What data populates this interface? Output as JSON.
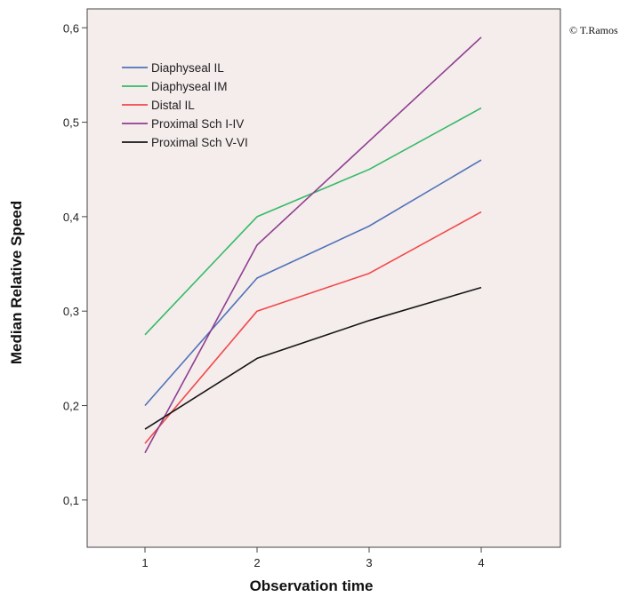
{
  "copyright": "© T.Ramos",
  "chart_data": {
    "type": "line",
    "title": "",
    "xlabel": "Observation time",
    "ylabel": "Median Relative Speed",
    "x": [
      "1",
      "2",
      "3",
      "4"
    ],
    "ylim": [
      0.05,
      0.62
    ],
    "yticks": [
      "0,1",
      "0,2",
      "0,3",
      "0,4",
      "0,5",
      "0,6"
    ],
    "legend_position": "top-left",
    "plot_background": "#f5ecec",
    "series": [
      {
        "name": "Diaphyseal IL",
        "color": "#4f73b8",
        "values": [
          0.2,
          0.335,
          0.39,
          0.46
        ]
      },
      {
        "name": "Diaphyseal IM",
        "color": "#33bb66",
        "values": [
          0.275,
          0.4,
          0.45,
          0.515
        ]
      },
      {
        "name": "Distal IL",
        "color": "#f24848",
        "values": [
          0.16,
          0.3,
          0.34,
          0.405
        ]
      },
      {
        "name": "Proximal Sch I-IV",
        "color": "#8e3f91",
        "values": [
          0.15,
          0.37,
          0.48,
          0.59
        ]
      },
      {
        "name": "Proximal Sch V-VI",
        "color": "#151515",
        "values": [
          0.175,
          0.25,
          0.29,
          0.325
        ]
      }
    ]
  }
}
